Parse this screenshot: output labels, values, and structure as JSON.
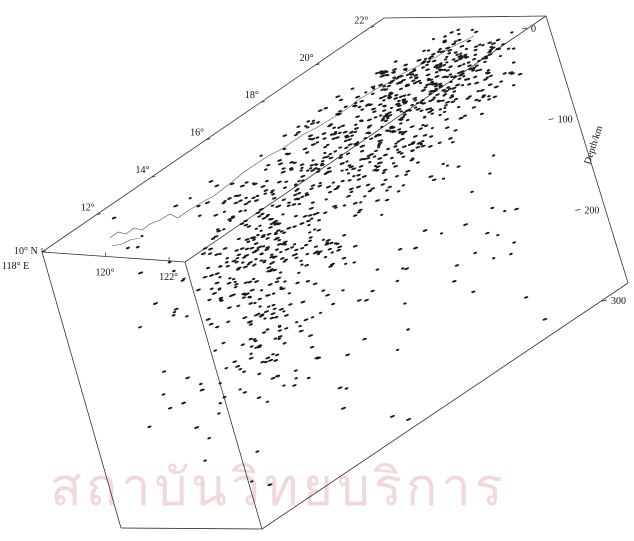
{
  "chart_data": {
    "type": "scatter3d",
    "title": "",
    "depth_axis": {
      "label": "Depth/km",
      "ticks": [
        0,
        100,
        200,
        300
      ],
      "range": [
        0,
        300
      ]
    },
    "lat_axis": {
      "ticks": [
        "10° N",
        "12°",
        "14°",
        "16°",
        "18°",
        "20°",
        "22°"
      ],
      "range_deg": [
        10,
        22.5
      ]
    },
    "lon_axis": {
      "ticks": [
        "118° E",
        "120°",
        "122°"
      ],
      "range_deg": [
        118,
        122.5
      ]
    },
    "grid": false,
    "legend": "none",
    "colors": {
      "points": "#1a1a1a",
      "frame": "#333333"
    },
    "clusters": [
      {
        "name": "",
        "lat_range": [
          19.5,
          22.3
        ],
        "lon_range": [
          120.0,
          122.3
        ],
        "depth_range": [
          0,
          60
        ],
        "count": 260
      },
      {
        "name": "",
        "lat_range": [
          16.5,
          20.0
        ],
        "lon_range": [
          119.8,
          122.0
        ],
        "depth_range": [
          0,
          90
        ],
        "count": 260
      },
      {
        "name": "",
        "lat_range": [
          13.5,
          17.0
        ],
        "lon_range": [
          119.5,
          121.5
        ],
        "depth_range": [
          20,
          140
        ],
        "count": 200
      },
      {
        "name": "",
        "lat_range": [
          12.5,
          15.0
        ],
        "lon_range": [
          119.5,
          121.3
        ],
        "depth_range": [
          60,
          220
        ],
        "count": 160
      },
      {
        "name": "",
        "lat_range": [
          10.5,
          22.0
        ],
        "lon_range": [
          118.5,
          122.3
        ],
        "depth_range": [
          0,
          300
        ],
        "count": 180
      }
    ]
  },
  "watermark": {
    "text": "สถาบันวิทยบริการ"
  }
}
